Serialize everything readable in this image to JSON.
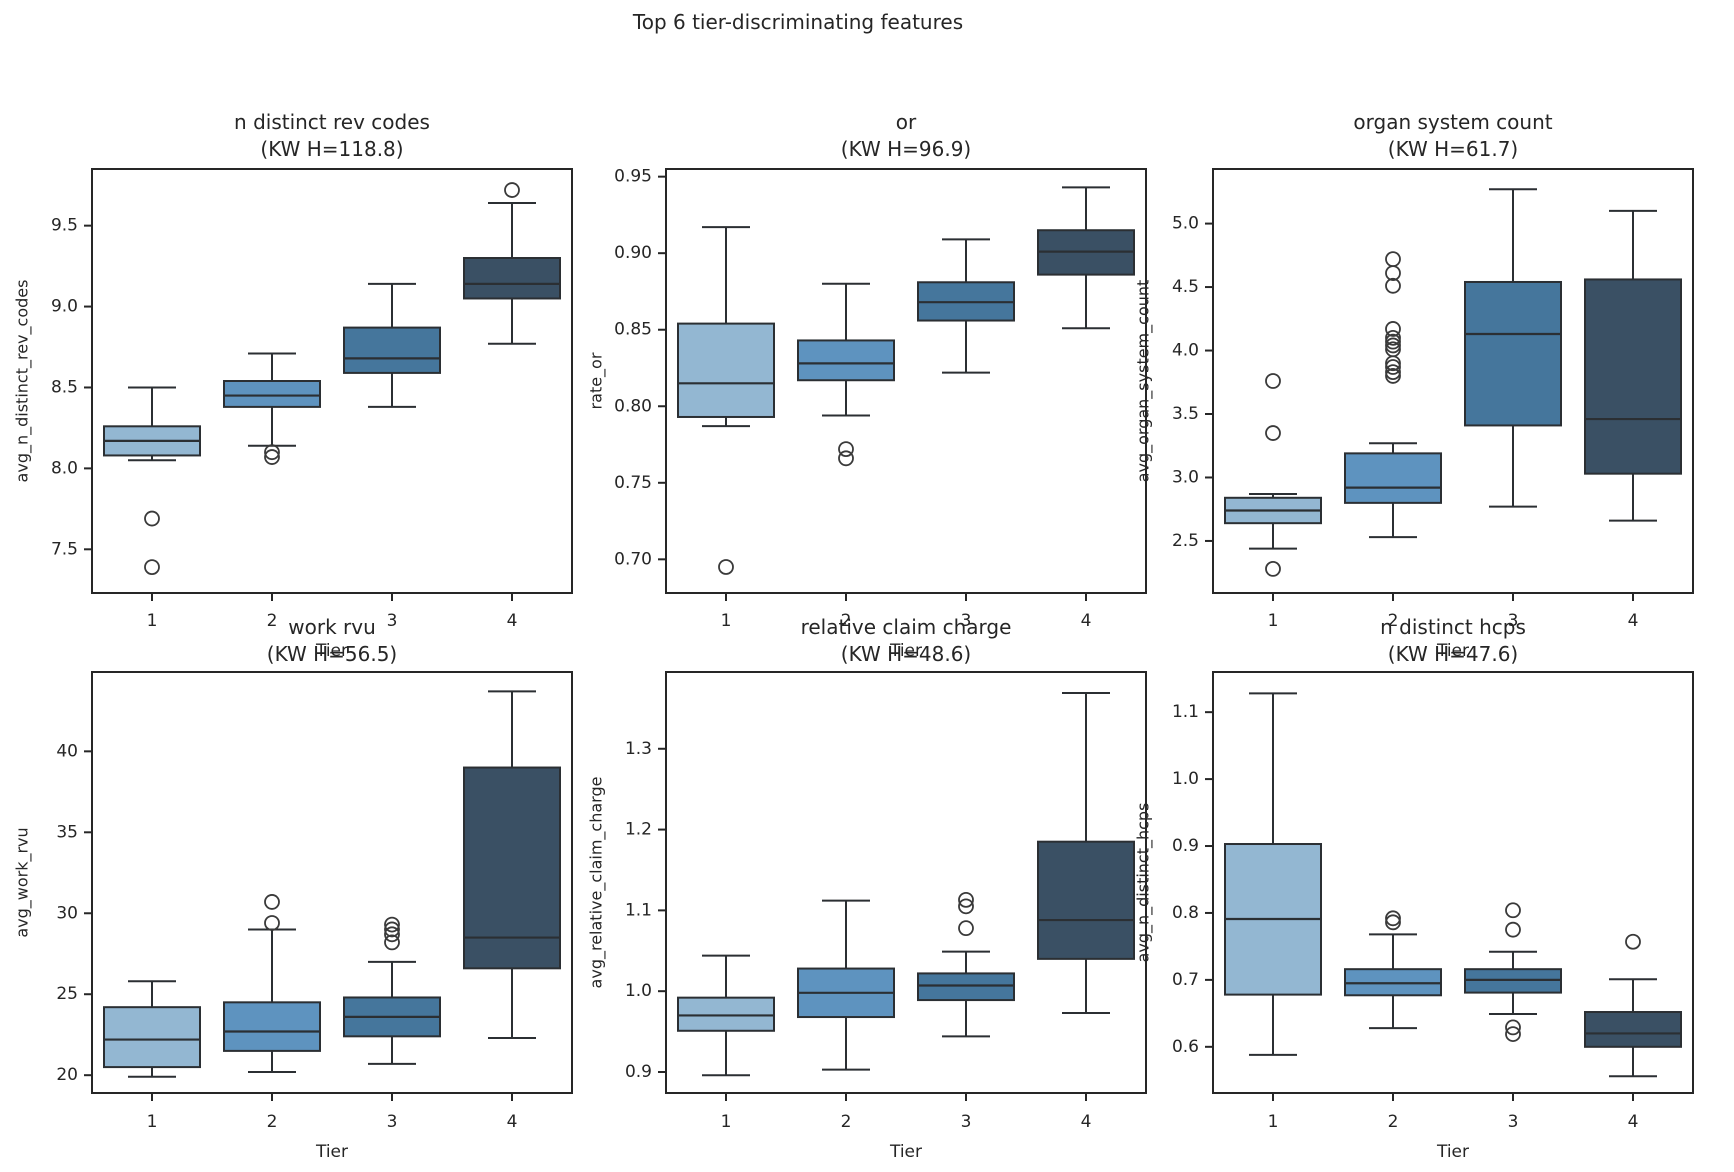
{
  "figure": {
    "title": "Top 6 tier-discriminating features",
    "background": "#ffffff",
    "text_color": "#262626"
  },
  "palette": {
    "tier_colors": [
      "#93b7d2",
      "#5e93bf",
      "#45769c",
      "#3a5064"
    ],
    "box_edge": "#2b2f33",
    "axis_color": "#262626",
    "outlier_edge": "#3a3a3a"
  },
  "chart_data": {
    "type": "boxplot-grid",
    "rows": 2,
    "cols": 3,
    "xlabel": "Tier",
    "categories": [
      "1",
      "2",
      "3",
      "4"
    ],
    "legend": "none",
    "grid": "off",
    "panels": [
      {
        "title": "n distinct rev codes",
        "subtitle": "(KW H=118.8)",
        "kw_h": 118.8,
        "ylabel": "avg_n_distinct_rev_codes",
        "ylim": [
          7.23,
          9.85
        ],
        "yticks": [
          7.5,
          8.0,
          8.5,
          9.0,
          9.5
        ],
        "ytick_labels": [
          "7.5",
          "8.0",
          "8.5",
          "9.0",
          "9.5"
        ],
        "boxes": [
          {
            "tier": "1",
            "whisker_lo": 8.05,
            "q1": 8.08,
            "median": 8.17,
            "q3": 8.26,
            "whisker_hi": 8.5,
            "outliers": [
              7.69,
              7.39
            ]
          },
          {
            "tier": "2",
            "whisker_lo": 8.14,
            "q1": 8.38,
            "median": 8.45,
            "q3": 8.54,
            "whisker_hi": 8.71,
            "outliers": [
              8.1,
              8.07
            ]
          },
          {
            "tier": "3",
            "whisker_lo": 8.38,
            "q1": 8.59,
            "median": 8.68,
            "q3": 8.87,
            "whisker_hi": 9.14,
            "outliers": []
          },
          {
            "tier": "4",
            "whisker_lo": 8.77,
            "q1": 9.05,
            "median": 9.14,
            "q3": 9.3,
            "whisker_hi": 9.64,
            "outliers": [
              9.72
            ]
          }
        ]
      },
      {
        "title": "or",
        "subtitle": "(KW H=96.9)",
        "kw_h": 96.9,
        "ylabel": "rate_or",
        "ylim": [
          0.678,
          0.955
        ],
        "yticks": [
          0.7,
          0.75,
          0.8,
          0.85,
          0.9,
          0.95
        ],
        "ytick_labels": [
          "0.70",
          "0.75",
          "0.80",
          "0.85",
          "0.90",
          "0.95"
        ],
        "boxes": [
          {
            "tier": "1",
            "whisker_lo": 0.787,
            "q1": 0.793,
            "median": 0.815,
            "q3": 0.854,
            "whisker_hi": 0.917,
            "outliers": [
              0.695
            ]
          },
          {
            "tier": "2",
            "whisker_lo": 0.794,
            "q1": 0.817,
            "median": 0.828,
            "q3": 0.843,
            "whisker_hi": 0.88,
            "outliers": [
              0.772,
              0.766
            ]
          },
          {
            "tier": "3",
            "whisker_lo": 0.822,
            "q1": 0.856,
            "median": 0.868,
            "q3": 0.881,
            "whisker_hi": 0.909,
            "outliers": []
          },
          {
            "tier": "4",
            "whisker_lo": 0.851,
            "q1": 0.886,
            "median": 0.901,
            "q3": 0.915,
            "whisker_hi": 0.943,
            "outliers": []
          }
        ]
      },
      {
        "title": "organ system count",
        "subtitle": "(KW H=61.7)",
        "kw_h": 61.7,
        "ylabel": "avg_organ_system_count",
        "ylim": [
          2.09,
          5.43
        ],
        "yticks": [
          2.5,
          3.0,
          3.5,
          4.0,
          4.5,
          5.0
        ],
        "ytick_labels": [
          "2.5",
          "3.0",
          "3.5",
          "4.0",
          "4.5",
          "5.0"
        ],
        "boxes": [
          {
            "tier": "1",
            "whisker_lo": 2.44,
            "q1": 2.64,
            "median": 2.74,
            "q3": 2.84,
            "whisker_hi": 2.87,
            "outliers": [
              3.76,
              3.35,
              2.28
            ]
          },
          {
            "tier": "2",
            "whisker_lo": 2.53,
            "q1": 2.8,
            "median": 2.92,
            "q3": 3.19,
            "whisker_hi": 3.27,
            "outliers": [
              4.72,
              4.61,
              4.51,
              4.17,
              4.1,
              4.07,
              4.04,
              4.01,
              3.9,
              3.87,
              3.83,
              3.8
            ]
          },
          {
            "tier": "3",
            "whisker_lo": 2.77,
            "q1": 3.41,
            "median": 4.13,
            "q3": 4.54,
            "whisker_hi": 5.27,
            "outliers": []
          },
          {
            "tier": "4",
            "whisker_lo": 2.66,
            "q1": 3.03,
            "median": 3.46,
            "q3": 4.56,
            "whisker_hi": 5.1,
            "outliers": []
          }
        ]
      },
      {
        "title": "work rvu",
        "subtitle": "(KW H=56.5)",
        "kw_h": 56.5,
        "ylabel": "avg_work_rvu",
        "ylim": [
          18.9,
          44.9
        ],
        "yticks": [
          20,
          25,
          30,
          35,
          40
        ],
        "ytick_labels": [
          "20",
          "25",
          "30",
          "35",
          "40"
        ],
        "boxes": [
          {
            "tier": "1",
            "whisker_lo": 19.9,
            "q1": 20.5,
            "median": 22.2,
            "q3": 24.2,
            "whisker_hi": 25.8,
            "outliers": []
          },
          {
            "tier": "2",
            "whisker_lo": 20.2,
            "q1": 21.5,
            "median": 22.7,
            "q3": 24.5,
            "whisker_hi": 29.0,
            "outliers": [
              30.7,
              29.4
            ]
          },
          {
            "tier": "3",
            "whisker_lo": 20.7,
            "q1": 22.4,
            "median": 23.6,
            "q3": 24.8,
            "whisker_hi": 27.0,
            "outliers": [
              29.3,
              29.0,
              28.7,
              28.2
            ]
          },
          {
            "tier": "4",
            "whisker_lo": 22.3,
            "q1": 26.6,
            "median": 28.5,
            "q3": 39.0,
            "whisker_hi": 43.7,
            "outliers": []
          }
        ]
      },
      {
        "title": "relative claim charge",
        "subtitle": "(KW H=48.6)",
        "kw_h": 48.6,
        "ylabel": "avg_relative_claim_charge",
        "ylim": [
          0.874,
          1.395
        ],
        "yticks": [
          0.9,
          1.0,
          1.1,
          1.2,
          1.3
        ],
        "ytick_labels": [
          "0.9",
          "1.0",
          "1.1",
          "1.2",
          "1.3"
        ],
        "boxes": [
          {
            "tier": "1",
            "whisker_lo": 0.896,
            "q1": 0.951,
            "median": 0.97,
            "q3": 0.992,
            "whisker_hi": 1.044,
            "outliers": []
          },
          {
            "tier": "2",
            "whisker_lo": 0.903,
            "q1": 0.968,
            "median": 0.998,
            "q3": 1.028,
            "whisker_hi": 1.112,
            "outliers": []
          },
          {
            "tier": "3",
            "whisker_lo": 0.944,
            "q1": 0.989,
            "median": 1.007,
            "q3": 1.022,
            "whisker_hi": 1.049,
            "outliers": [
              1.113,
              1.105,
              1.078
            ]
          },
          {
            "tier": "4",
            "whisker_lo": 0.973,
            "q1": 1.04,
            "median": 1.088,
            "q3": 1.185,
            "whisker_hi": 1.369,
            "outliers": []
          }
        ]
      },
      {
        "title": "n distinct hcps",
        "subtitle": "(KW H=47.6)",
        "kw_h": 47.6,
        "ylabel": "avg_n_distinct_hcps",
        "ylim": [
          0.531,
          1.16
        ],
        "yticks": [
          0.6,
          0.7,
          0.8,
          0.9,
          1.0,
          1.1
        ],
        "ytick_labels": [
          "0.6",
          "0.7",
          "0.8",
          "0.9",
          "1.0",
          "1.1"
        ],
        "boxes": [
          {
            "tier": "1",
            "whisker_lo": 0.588,
            "q1": 0.678,
            "median": 0.791,
            "q3": 0.903,
            "whisker_hi": 1.128,
            "outliers": []
          },
          {
            "tier": "2",
            "whisker_lo": 0.628,
            "q1": 0.677,
            "median": 0.695,
            "q3": 0.716,
            "whisker_hi": 0.768,
            "outliers": [
              0.792,
              0.786
            ]
          },
          {
            "tier": "3",
            "whisker_lo": 0.649,
            "q1": 0.681,
            "median": 0.7,
            "q3": 0.716,
            "whisker_hi": 0.742,
            "outliers": [
              0.804,
              0.775,
              0.629,
              0.619
            ]
          },
          {
            "tier": "4",
            "whisker_lo": 0.556,
            "q1": 0.6,
            "median": 0.62,
            "q3": 0.652,
            "whisker_hi": 0.701,
            "outliers": [
              0.757
            ]
          }
        ]
      }
    ]
  }
}
